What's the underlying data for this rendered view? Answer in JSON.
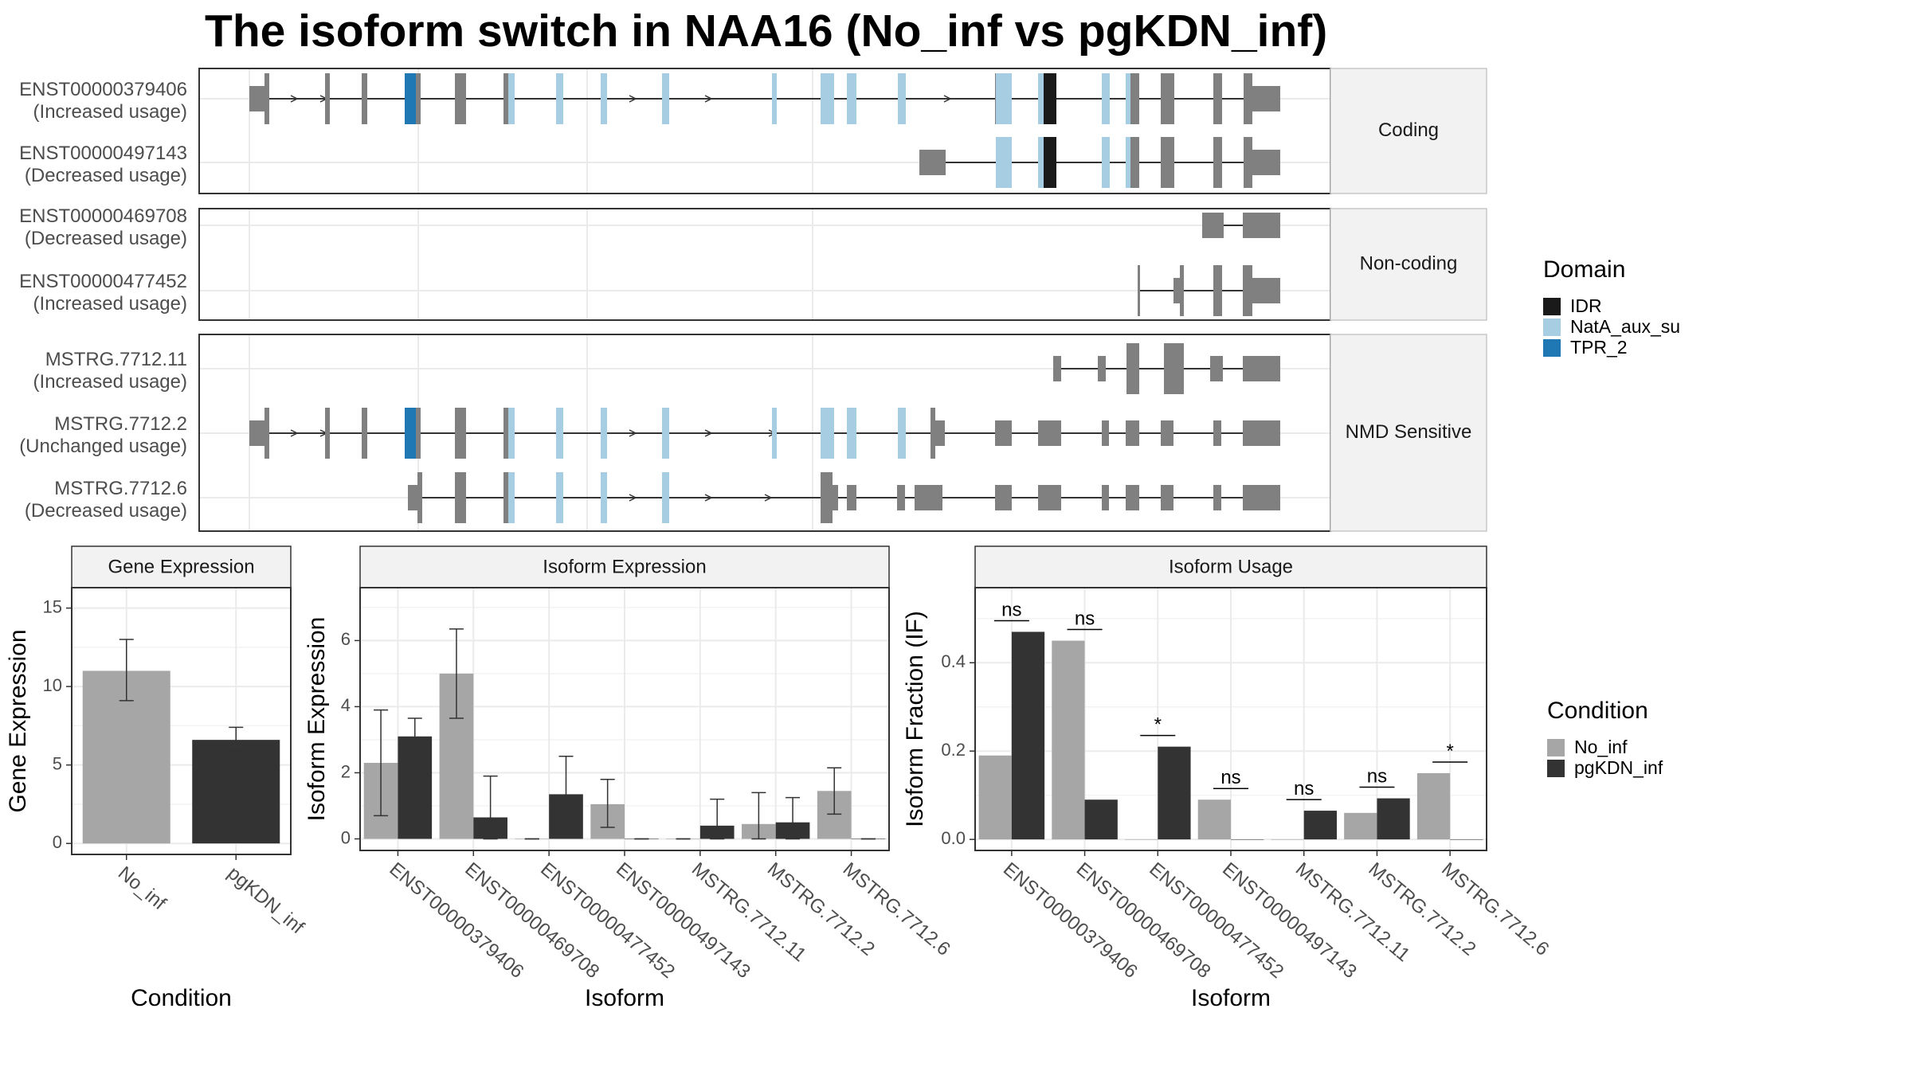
{
  "title": "The isoform switch in NAA16 (No_inf vs pgKDN_inf)",
  "colors": {
    "No_inf": "#a6a6a6",
    "pgKDN_inf": "#333333",
    "exon": "#808080",
    "IDR": "#1a1a1a",
    "NatA_aux_su": "#a6cde2",
    "TPR_2": "#1f78b4",
    "grid": "#ebebeb",
    "strip": "#f2f2f2"
  },
  "domain_legend": {
    "title": "Domain",
    "items": [
      {
        "label": "IDR",
        "color_key": "IDR"
      },
      {
        "label": "NatA_aux_su",
        "color_key": "NatA_aux_su"
      },
      {
        "label": "TPR_2",
        "color_key": "TPR_2"
      }
    ]
  },
  "condition_legend": {
    "title": "Condition",
    "items": [
      {
        "label": "No_inf",
        "color_key": "No_inf"
      },
      {
        "label": "pgKDN_inf",
        "color_key": "pgKDN_inf"
      }
    ]
  },
  "transcript_panel": {
    "groups": [
      {
        "label": "Coding",
        "transcripts": [
          {
            "name": "ENST00000379406",
            "status": "(Increased usage)"
          },
          {
            "name": "ENST00000497143",
            "status": "(Decreased usage)"
          }
        ]
      },
      {
        "label": "Non-coding",
        "transcripts": [
          {
            "name": "ENST00000469708",
            "status": "(Decreased usage)"
          },
          {
            "name": "ENST00000477452",
            "status": "(Increased usage)"
          }
        ]
      },
      {
        "label": "NMD Sensitive",
        "transcripts": [
          {
            "name": "MSTRG.7712.11",
            "status": "(Increased usage)"
          },
          {
            "name": "MSTRG.7712.2",
            "status": "(Unchanged usage)"
          },
          {
            "name": "MSTRG.7712.6",
            "status": "(Decreased usage)"
          }
        ]
      }
    ]
  },
  "chart_data": [
    {
      "type": "bar",
      "title": "Gene Expression",
      "xlabel": "Condition",
      "ylabel": "Gene Expression",
      "categories": [
        "No_inf",
        "pgKDN_inf"
      ],
      "values": [
        11.0,
        6.6
      ],
      "errors": [
        [
          9.1,
          13.0
        ],
        [
          5.9,
          7.4
        ]
      ],
      "ylim": [
        -0.7,
        16.3
      ],
      "yticks": [
        0,
        5,
        10,
        15
      ],
      "grid": true
    },
    {
      "type": "bar",
      "title": "Isoform Expression",
      "xlabel": "Isoform",
      "ylabel": "Isoform Expression",
      "categories": [
        "ENST00000379406",
        "ENST00000469708",
        "ENST00000477452",
        "ENST00000497143",
        "MSTRG.7712.11",
        "MSTRG.7712.2",
        "MSTRG.7712.6"
      ],
      "series": [
        {
          "name": "No_inf",
          "values": [
            2.3,
            5.0,
            0.0,
            1.05,
            0.0,
            0.45,
            1.45
          ],
          "errors": [
            [
              0.7,
              3.9
            ],
            [
              3.65,
              6.35
            ],
            [
              0,
              0
            ],
            [
              0.35,
              1.8
            ],
            [
              0,
              0
            ],
            [
              0,
              1.4
            ],
            [
              0.75,
              2.15
            ]
          ]
        },
        {
          "name": "pgKDN_inf",
          "values": [
            3.1,
            0.65,
            1.35,
            0.0,
            0.4,
            0.5,
            0.0
          ],
          "errors": [
            [
              2.55,
              3.65
            ],
            [
              0,
              1.9
            ],
            [
              0.2,
              2.5
            ],
            [
              0,
              0
            ],
            [
              0,
              1.2
            ],
            [
              0,
              1.25
            ],
            [
              0,
              0
            ]
          ]
        }
      ],
      "ylim": [
        -0.35,
        7.6
      ],
      "yticks": [
        0,
        2,
        4,
        6
      ],
      "grid": true
    },
    {
      "type": "bar",
      "title": "Isoform Usage",
      "xlabel": "Isoform",
      "ylabel": "Isoform Fraction (IF)",
      "categories": [
        "ENST00000379406",
        "ENST00000469708",
        "ENST00000477452",
        "ENST00000497143",
        "MSTRG.7712.11",
        "MSTRG.7712.2",
        "MSTRG.7712.6"
      ],
      "series": [
        {
          "name": "No_inf",
          "values": [
            0.19,
            0.45,
            0.0,
            0.09,
            0.0,
            0.06,
            0.15
          ]
        },
        {
          "name": "pgKDN_inf",
          "values": [
            0.47,
            0.09,
            0.21,
            0.0,
            0.065,
            0.093,
            0.0
          ]
        }
      ],
      "significance": [
        "ns",
        "ns",
        "*",
        "ns",
        "ns",
        "ns",
        "*"
      ],
      "ylim": [
        -0.025,
        0.57
      ],
      "yticks": [
        0.0,
        0.2,
        0.4
      ],
      "ytick_labels": [
        "0.0",
        "0.2",
        "0.4"
      ],
      "grid": true
    }
  ]
}
